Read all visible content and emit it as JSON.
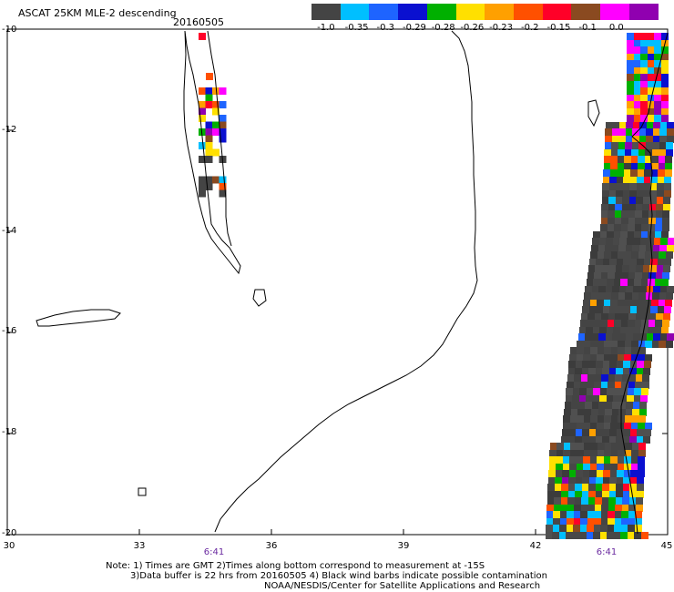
{
  "header": {
    "title": "ASCAT 25KM MLE-2 descending",
    "date": "20160505"
  },
  "colorbar": {
    "labels": [
      "-1.0",
      "-0.35",
      "-0.3",
      "-0.29",
      "-0.28",
      "-0.26",
      "-0.23",
      "-0.2",
      "-0.15",
      "-0.1",
      "0.0"
    ],
    "colors": [
      "#444444",
      "#00bfff",
      "#1e64ff",
      "#0a10d0",
      "#00b000",
      "#ffe000",
      "#ffa000",
      "#ff5000",
      "#ff0028",
      "#8a4a20",
      "#ff00ff",
      "#9000b0"
    ]
  },
  "axes": {
    "lat_labels": [
      "-10",
      "-12",
      "-14",
      "-16",
      "-18",
      "-20"
    ],
    "lon_labels": [
      "30",
      "33",
      "36",
      "39",
      "42",
      "45"
    ]
  },
  "pass_times": [
    "6:41",
    "6:41"
  ],
  "notes": {
    "line1": "Note: 1) Times are GMT 2)Times along bottom correspond to measurement at -15S",
    "line2": "3)Data buffer is 22 hrs from 20160505 4) Black wind barbs indicate possible contamination",
    "line3": "NOAA/NESDIS/Center for Satellite Applications and Research"
  }
}
